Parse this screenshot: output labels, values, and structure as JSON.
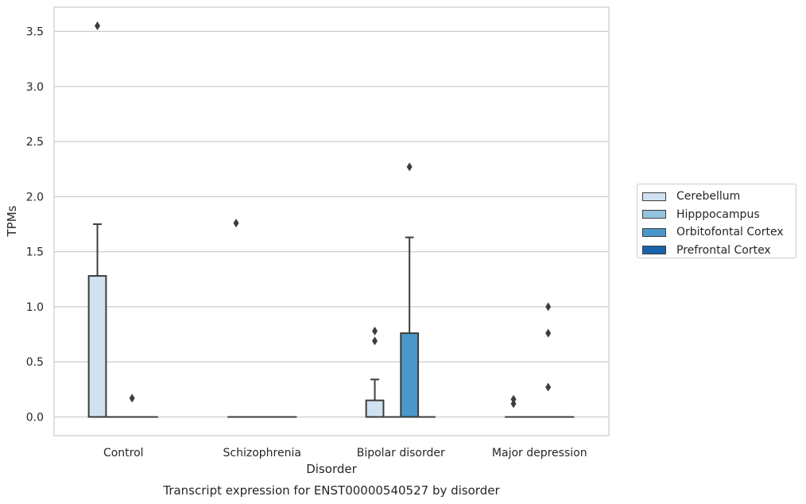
{
  "chart_data": {
    "type": "boxplot",
    "title": "Transcript expression for ENST00000540527 by disorder",
    "xlabel": "Disorder",
    "ylabel": "TPMs",
    "ylim": [
      -0.17,
      3.72
    ],
    "yticks": [
      "0.0",
      "0.5",
      "1.0",
      "1.5",
      "2.0",
      "2.5",
      "3.0",
      "3.5"
    ],
    "categories": [
      "Control",
      "Schizophrenia",
      "Bipolar disorder",
      "Major depression"
    ],
    "grid": true,
    "legend_position": "right",
    "series": [
      {
        "name": "Cerebellum",
        "color": "#d0e1f2",
        "boxes": [
          {
            "q1": 0.0,
            "median": 0.0,
            "q3": 1.28,
            "whisker_low": 0.0,
            "whisker_high": 1.75,
            "outliers": [
              3.55
            ]
          },
          {
            "q1": 0.0,
            "median": 0.0,
            "q3": 0.0,
            "whisker_low": 0.0,
            "whisker_high": 0.0,
            "outliers": [
              1.76
            ]
          },
          {
            "q1": 0.0,
            "median": 0.0,
            "q3": 0.15,
            "whisker_low": 0.0,
            "whisker_high": 0.34,
            "outliers": [
              0.69,
              0.78
            ]
          },
          {
            "q1": 0.0,
            "median": 0.0,
            "q3": 0.0,
            "whisker_low": 0.0,
            "whisker_high": 0.0,
            "outliers": [
              0.12,
              0.16
            ]
          }
        ]
      },
      {
        "name": "Hipppocampus",
        "color": "#94c4df",
        "boxes": [
          {
            "q1": 0.0,
            "median": 0.0,
            "q3": 0.0,
            "whisker_low": 0.0,
            "whisker_high": 0.0,
            "outliers": []
          },
          {
            "q1": 0.0,
            "median": 0.0,
            "q3": 0.0,
            "whisker_low": 0.0,
            "whisker_high": 0.0,
            "outliers": []
          },
          {
            "q1": 0.0,
            "median": 0.0,
            "q3": 0.0,
            "whisker_low": 0.0,
            "whisker_high": 0.0,
            "outliers": []
          },
          {
            "q1": 0.0,
            "median": 0.0,
            "q3": 0.0,
            "whisker_low": 0.0,
            "whisker_high": 0.0,
            "outliers": []
          }
        ]
      },
      {
        "name": "Orbitofontal Cortex",
        "color": "#4a98c9",
        "boxes": [
          {
            "q1": 0.0,
            "median": 0.0,
            "q3": 0.0,
            "whisker_low": 0.0,
            "whisker_high": 0.0,
            "outliers": [
              0.17
            ]
          },
          {
            "q1": 0.0,
            "median": 0.0,
            "q3": 0.0,
            "whisker_low": 0.0,
            "whisker_high": 0.0,
            "outliers": []
          },
          {
            "q1": 0.0,
            "median": 0.0,
            "q3": 0.76,
            "whisker_low": 0.0,
            "whisker_high": 1.63,
            "outliers": [
              2.27
            ]
          },
          {
            "q1": 0.0,
            "median": 0.0,
            "q3": 0.0,
            "whisker_low": 0.0,
            "whisker_high": 0.0,
            "outliers": [
              0.27,
              0.76,
              1.0
            ]
          }
        ]
      },
      {
        "name": "Prefrontal Cortex",
        "color": "#1764ab",
        "boxes": [
          {
            "q1": 0.0,
            "median": 0.0,
            "q3": 0.0,
            "whisker_low": 0.0,
            "whisker_high": 0.0,
            "outliers": []
          },
          {
            "q1": 0.0,
            "median": 0.0,
            "q3": 0.0,
            "whisker_low": 0.0,
            "whisker_high": 0.0,
            "outliers": []
          },
          {
            "q1": 0.0,
            "median": 0.0,
            "q3": 0.0,
            "whisker_low": 0.0,
            "whisker_high": 0.0,
            "outliers": []
          },
          {
            "q1": 0.0,
            "median": 0.0,
            "q3": 0.0,
            "whisker_low": 0.0,
            "whisker_high": 0.0,
            "outliers": []
          }
        ]
      }
    ]
  }
}
